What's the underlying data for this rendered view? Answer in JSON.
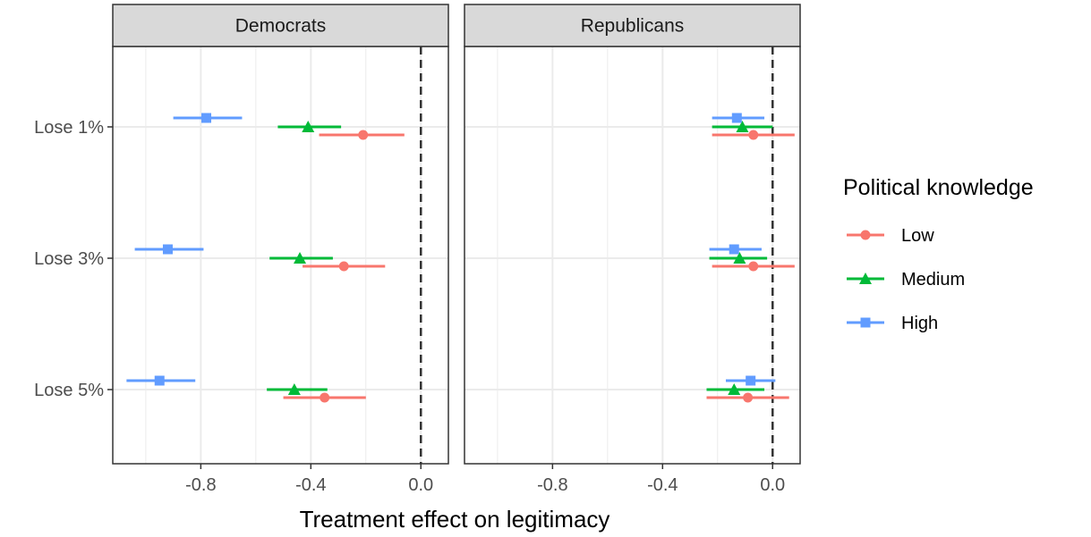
{
  "chart_data": {
    "type": "scatter",
    "xlabel": "Treatment effect on legitimacy",
    "xlim": [
      -1.12,
      0.1
    ],
    "x_ticks": [
      -0.8,
      -0.4,
      0.0
    ],
    "x_tick_labels": [
      "-0.8",
      "-0.4",
      "0.0"
    ],
    "reference_line": 0.0,
    "categories": [
      "Lose 1%",
      "Lose 3%",
      "Lose 5%"
    ],
    "panels": [
      "Democrats",
      "Republicans"
    ],
    "grid": true,
    "legend": {
      "title": "Political knowledge",
      "placement": "right",
      "entries": [
        "Low",
        "Medium",
        "High"
      ]
    },
    "series": [
      {
        "name": "Low",
        "color": "#f8766d",
        "marker": "circle",
        "panels": [
          {
            "panel": "Democrats",
            "estimates": [
              -0.21,
              -0.28,
              -0.35
            ],
            "ci_low": [
              -0.37,
              -0.43,
              -0.5
            ],
            "ci_high": [
              -0.06,
              -0.13,
              -0.2
            ]
          },
          {
            "panel": "Republicans",
            "estimates": [
              -0.07,
              -0.07,
              -0.09
            ],
            "ci_low": [
              -0.22,
              -0.22,
              -0.24
            ],
            "ci_high": [
              0.08,
              0.08,
              0.06
            ]
          }
        ]
      },
      {
        "name": "Medium",
        "color": "#00ba38",
        "marker": "triangle",
        "panels": [
          {
            "panel": "Democrats",
            "estimates": [
              -0.41,
              -0.44,
              -0.46
            ],
            "ci_low": [
              -0.52,
              -0.55,
              -0.56
            ],
            "ci_high": [
              -0.29,
              -0.32,
              -0.34
            ]
          },
          {
            "panel": "Republicans",
            "estimates": [
              -0.11,
              -0.12,
              -0.14
            ],
            "ci_low": [
              -0.22,
              -0.23,
              -0.24
            ],
            "ci_high": [
              0.0,
              -0.02,
              -0.03
            ]
          }
        ]
      },
      {
        "name": "High",
        "color": "#619cff",
        "marker": "square",
        "panels": [
          {
            "panel": "Democrats",
            "estimates": [
              -0.78,
              -0.92,
              -0.95
            ],
            "ci_low": [
              -0.9,
              -1.04,
              -1.07
            ],
            "ci_high": [
              -0.65,
              -0.79,
              -0.82
            ]
          },
          {
            "panel": "Republicans",
            "estimates": [
              -0.13,
              -0.14,
              -0.08
            ],
            "ci_low": [
              -0.22,
              -0.23,
              -0.17
            ],
            "ci_high": [
              -0.03,
              -0.04,
              0.01
            ]
          }
        ]
      }
    ]
  }
}
